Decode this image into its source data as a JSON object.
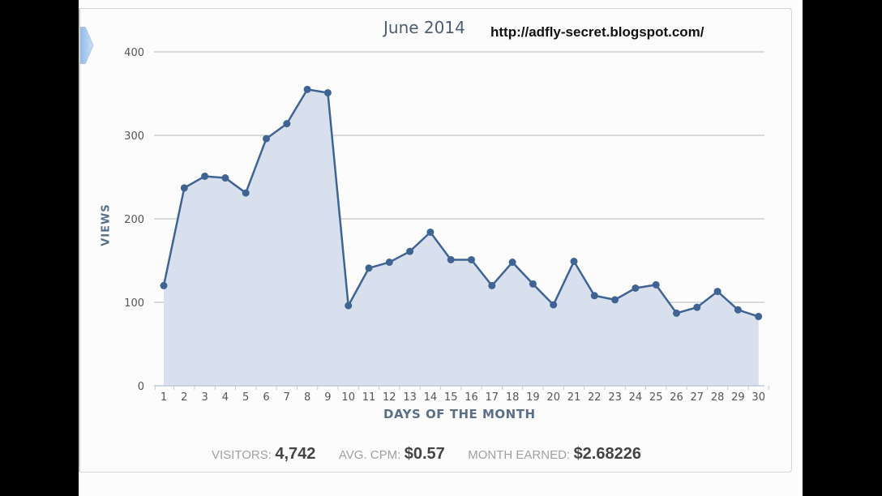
{
  "header": {
    "title": "June 2014",
    "watermark_url": "http://adfly-secret.blogspot.com/"
  },
  "axes": {
    "y_label": "VIEWS",
    "x_label": "DAYS OF THE MONTH"
  },
  "stats": {
    "visitors_label": "VISITORS:",
    "visitors_value": "4,742",
    "cpm_label": "AVG. CPM:",
    "cpm_value": "$0.57",
    "earned_label": "MONTH EARNED:",
    "earned_value": "$2.68226"
  },
  "colors": {
    "line": "#3f6494",
    "fill": "#d7e0ec",
    "grid": "#b8b8b8",
    "axis_title": "#5a6f88"
  },
  "chart_data": {
    "type": "area",
    "title": "June 2014",
    "xlabel": "DAYS OF THE MONTH",
    "ylabel": "VIEWS",
    "ylim": [
      0,
      400
    ],
    "yticks": [
      0,
      100,
      200,
      300,
      400
    ],
    "grid": true,
    "legend": null,
    "categories": [
      "1",
      "2",
      "3",
      "4",
      "5",
      "6",
      "7",
      "8",
      "9",
      "10",
      "11",
      "12",
      "13",
      "14",
      "15",
      "16",
      "17",
      "18",
      "19",
      "20",
      "21",
      "22",
      "23",
      "24",
      "25",
      "26",
      "27",
      "28",
      "29",
      "30"
    ],
    "series": [
      {
        "name": "Views",
        "values": [
          120,
          237,
          251,
          249,
          231,
          296,
          314,
          355,
          351,
          96,
          141,
          148,
          161,
          184,
          151,
          151,
          120,
          148,
          122,
          97,
          149,
          108,
          103,
          117,
          121,
          87,
          94,
          113,
          91,
          83
        ]
      }
    ]
  }
}
